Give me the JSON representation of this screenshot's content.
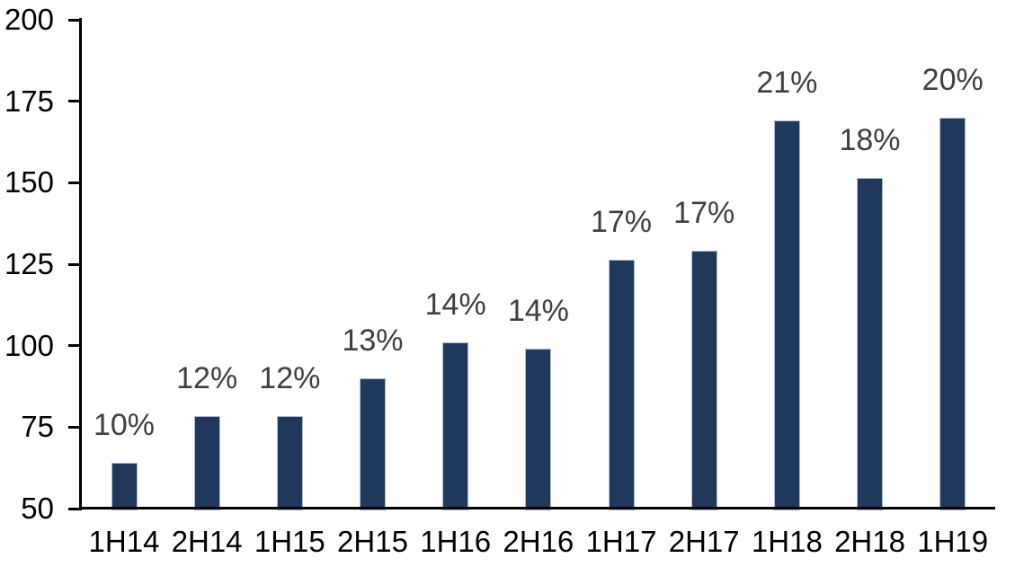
{
  "chart_data": {
    "type": "bar",
    "title": "",
    "xlabel": "",
    "ylabel": "",
    "categories": [
      "1H14",
      "2H14",
      "1H15",
      "2H15",
      "1H16",
      "2H16",
      "1H17",
      "2H17",
      "1H18",
      "2H18",
      "1H19"
    ],
    "values": [
      64,
      78.5,
      78.5,
      90,
      101,
      99,
      126.5,
      129,
      169,
      151.5,
      170
    ],
    "bar_labels": [
      "10%",
      "12%",
      "12%",
      "13%",
      "14%",
      "14%",
      "17%",
      "17%",
      "21%",
      "18%",
      "20%"
    ],
    "yticks": [
      50,
      75,
      100,
      125,
      150,
      175,
      200
    ],
    "ylim": [
      50,
      200
    ],
    "grid": false,
    "legend": false,
    "colors": {
      "bar_fill": "#20385C",
      "bar_border": "#AEBDD3",
      "data_label": "#3F3F3F",
      "axis_line": "#000000",
      "axis_text": "#000000",
      "background": "#FFFFFF"
    }
  }
}
